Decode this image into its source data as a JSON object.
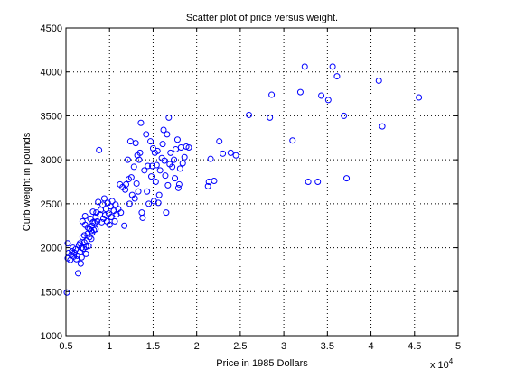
{
  "chart_data": {
    "type": "scatter",
    "title": "Scatter plot of price versus weight.",
    "xlabel": "Price in 1985 Dollars",
    "ylabel": "Curb weight in pounds",
    "x_exponent_label": "x 10",
    "x_exponent_power": "4",
    "xlim": [
      0.5,
      5
    ],
    "ylim": [
      1000,
      4500
    ],
    "x_ticks": [
      "0.5",
      "1",
      "1.5",
      "2",
      "2.5",
      "3",
      "3.5",
      "4",
      "4.5",
      "5"
    ],
    "y_ticks": [
      "1000",
      "1500",
      "2000",
      "2500",
      "3000",
      "3500",
      "4000",
      "4500"
    ],
    "grid": true,
    "marker_color": "#0000ff",
    "marker": "circle-open",
    "points": [
      [
        0.51,
        1490
      ],
      [
        0.52,
        1880
      ],
      [
        0.52,
        2050
      ],
      [
        0.53,
        1940
      ],
      [
        0.55,
        1860
      ],
      [
        0.56,
        1920
      ],
      [
        0.57,
        1960
      ],
      [
        0.58,
        2000
      ],
      [
        0.59,
        1900
      ],
      [
        0.6,
        1940
      ],
      [
        0.61,
        1980
      ],
      [
        0.62,
        1870
      ],
      [
        0.63,
        1910
      ],
      [
        0.64,
        1710
      ],
      [
        0.65,
        2030
      ],
      [
        0.66,
        1950
      ],
      [
        0.66,
        2050
      ],
      [
        0.67,
        1820
      ],
      [
        0.68,
        1890
      ],
      [
        0.68,
        2000
      ],
      [
        0.69,
        2120
      ],
      [
        0.69,
        2300
      ],
      [
        0.7,
        1990
      ],
      [
        0.71,
        2060
      ],
      [
        0.71,
        2140
      ],
      [
        0.72,
        2260
      ],
      [
        0.72,
        2360
      ],
      [
        0.73,
        1930
      ],
      [
        0.73,
        2010
      ],
      [
        0.74,
        2080
      ],
      [
        0.75,
        2160
      ],
      [
        0.75,
        2230
      ],
      [
        0.76,
        2020
      ],
      [
        0.77,
        2120
      ],
      [
        0.77,
        2210
      ],
      [
        0.78,
        2330
      ],
      [
        0.79,
        2100
      ],
      [
        0.79,
        2190
      ],
      [
        0.8,
        2250
      ],
      [
        0.8,
        2170
      ],
      [
        0.81,
        2290
      ],
      [
        0.81,
        2410
      ],
      [
        0.82,
        2200
      ],
      [
        0.83,
        2280
      ],
      [
        0.84,
        2350
      ],
      [
        0.84,
        2210
      ],
      [
        0.85,
        2400
      ],
      [
        0.86,
        2300
      ],
      [
        0.87,
        2520
      ],
      [
        0.88,
        3110
      ],
      [
        0.89,
        2380
      ],
      [
        0.9,
        2430
      ],
      [
        0.91,
        2290
      ],
      [
        0.92,
        2490
      ],
      [
        0.93,
        2330
      ],
      [
        0.94,
        2560
      ],
      [
        0.95,
        2370
      ],
      [
        0.96,
        2440
      ],
      [
        0.97,
        2300
      ],
      [
        0.98,
        2510
      ],
      [
        0.99,
        2390
      ],
      [
        1.0,
        2260
      ],
      [
        1.01,
        2470
      ],
      [
        1.02,
        2350
      ],
      [
        1.03,
        2530
      ],
      [
        1.05,
        2420
      ],
      [
        1.06,
        2300
      ],
      [
        1.07,
        2490
      ],
      [
        1.08,
        2380
      ],
      [
        1.1,
        2440
      ],
      [
        1.12,
        2720
      ],
      [
        1.13,
        2400
      ],
      [
        1.15,
        2690
      ],
      [
        1.17,
        2250
      ],
      [
        1.18,
        2660
      ],
      [
        1.19,
        2720
      ],
      [
        1.21,
        3000
      ],
      [
        1.22,
        2780
      ],
      [
        1.23,
        2500
      ],
      [
        1.24,
        3210
      ],
      [
        1.25,
        2800
      ],
      [
        1.26,
        2600
      ],
      [
        1.28,
        2920
      ],
      [
        1.29,
        2560
      ],
      [
        1.3,
        3190
      ],
      [
        1.31,
        2730
      ],
      [
        1.32,
        3050
      ],
      [
        1.33,
        2640
      ],
      [
        1.34,
        3000
      ],
      [
        1.35,
        3080
      ],
      [
        1.36,
        3420
      ],
      [
        1.37,
        2400
      ],
      [
        1.38,
        2340
      ],
      [
        1.4,
        2880
      ],
      [
        1.42,
        3290
      ],
      [
        1.43,
        2640
      ],
      [
        1.44,
        2930
      ],
      [
        1.45,
        2500
      ],
      [
        1.47,
        3210
      ],
      [
        1.48,
        2810
      ],
      [
        1.49,
        2930
      ],
      [
        1.5,
        3130
      ],
      [
        1.51,
        2530
      ],
      [
        1.52,
        3080
      ],
      [
        1.53,
        2750
      ],
      [
        1.54,
        2940
      ],
      [
        1.55,
        3100
      ],
      [
        1.56,
        2510
      ],
      [
        1.57,
        2600
      ],
      [
        1.58,
        2880
      ],
      [
        1.6,
        3020
      ],
      [
        1.61,
        3180
      ],
      [
        1.62,
        3340
      ],
      [
        1.63,
        2990
      ],
      [
        1.64,
        2820
      ],
      [
        1.65,
        2400
      ],
      [
        1.66,
        3290
      ],
      [
        1.67,
        2710
      ],
      [
        1.68,
        3480
      ],
      [
        1.69,
        2950
      ],
      [
        1.7,
        3080
      ],
      [
        1.72,
        2920
      ],
      [
        1.74,
        3000
      ],
      [
        1.75,
        2790
      ],
      [
        1.76,
        3120
      ],
      [
        1.78,
        3230
      ],
      [
        1.79,
        2680
      ],
      [
        1.8,
        2720
      ],
      [
        1.81,
        2900
      ],
      [
        1.82,
        3140
      ],
      [
        1.84,
        2960
      ],
      [
        1.86,
        3030
      ],
      [
        1.88,
        3150
      ],
      [
        1.91,
        3140
      ],
      [
        2.13,
        2700
      ],
      [
        2.14,
        2750
      ],
      [
        2.16,
        3010
      ],
      [
        2.2,
        2760
      ],
      [
        2.26,
        3210
      ],
      [
        2.3,
        3070
      ],
      [
        2.39,
        3080
      ],
      [
        2.45,
        3050
      ],
      [
        2.6,
        3510
      ],
      [
        2.84,
        3480
      ],
      [
        2.86,
        3740
      ],
      [
        3.1,
        3220
      ],
      [
        3.19,
        3770
      ],
      [
        3.24,
        4060
      ],
      [
        3.28,
        2750
      ],
      [
        3.39,
        2750
      ],
      [
        3.43,
        3730
      ],
      [
        3.51,
        3680
      ],
      [
        3.56,
        4060
      ],
      [
        3.61,
        3950
      ],
      [
        3.69,
        3500
      ],
      [
        3.72,
        2790
      ],
      [
        4.09,
        3900
      ],
      [
        4.13,
        3380
      ],
      [
        4.55,
        3710
      ]
    ]
  }
}
